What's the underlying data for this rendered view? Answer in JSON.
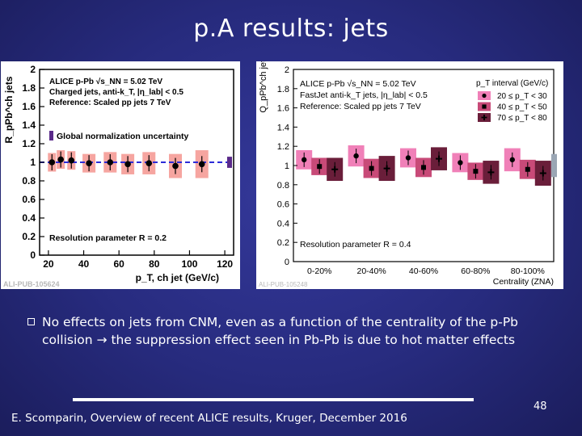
{
  "slide": {
    "title": "p.A results: jets",
    "bullet": "No effects on jets from CNM, even as a function of the centrality of the p-Pb collision → the suppression effect seen in Pb-Pb is due to hot matter effects",
    "footer": "E. Scomparin, Overview of recent ALICE results, Kruger, December 2016",
    "page_number": "48"
  },
  "colors": {
    "background": "#272b7e",
    "band_left": "#f6a5a0",
    "series_20_30": "#f080b8",
    "series_40_50": "#c84a78",
    "series_70_80": "#6a1e3a",
    "dashed_line": "#2c2cd8"
  },
  "chart_data": [
    {
      "type": "scatter",
      "watermark": "ALI-PUB-105624",
      "ylabel": "R_pPb^ch jets",
      "xlabel": "p_T, ch jet (GeV/c)",
      "xlim": [
        15,
        125
      ],
      "ylim": [
        0,
        2
      ],
      "xticks": [
        "20",
        "40",
        "60",
        "80",
        "100",
        "120"
      ],
      "yticks": [
        "0",
        "0.2",
        "0.4",
        "0.6",
        "0.8",
        "1",
        "1.2",
        "1.4",
        "1.6",
        "1.8",
        "2"
      ],
      "legend": [
        "ALICE p-Pb √s_NN = 5.02 TeV",
        "Charged jets, anti-k_T, |η_lab| < 0.5",
        "Reference: Scaled pp jets 7 TeV"
      ],
      "norm_uncertainty_label": "Global normalization uncertainty",
      "resolution_label": "Resolution parameter R = 0.2",
      "x": [
        22,
        27,
        33,
        43,
        55,
        65,
        77,
        92,
        107
      ],
      "y": [
        1.0,
        1.03,
        1.02,
        0.99,
        1.0,
        0.98,
        0.99,
        0.96,
        0.98
      ],
      "syst_low": [
        0.9,
        0.93,
        0.92,
        0.89,
        0.89,
        0.87,
        0.87,
        0.83,
        0.83
      ],
      "syst_high": [
        1.1,
        1.13,
        1.12,
        1.09,
        1.11,
        1.09,
        1.11,
        1.09,
        1.13
      ]
    },
    {
      "type": "scatter",
      "watermark": "ALI-PUB-105248",
      "ylabel": "Q_pPb^ch jets",
      "xlabel": "Centrality (ZNA)",
      "ylim": [
        0,
        2
      ],
      "yticks": [
        "0",
        "0.2",
        "0.4",
        "0.6",
        "0.8",
        "1",
        "1.2",
        "1.4",
        "1.6",
        "1.8",
        "2"
      ],
      "categories": [
        "0-20%",
        "20-40%",
        "40-60%",
        "60-80%",
        "80-100%"
      ],
      "legend": [
        "ALICE p-Pb √s_NN = 5.02 TeV",
        "FastJet anti-k_T jets, |η_lab| < 0.5",
        "Reference: Scaled pp jets 7 TeV"
      ],
      "legend_title": "p_T interval (GeV/c)",
      "resolution_label": "Resolution parameter R = 0.4",
      "series": [
        {
          "name": "20 ≤ p_T < 30",
          "values": [
            1.06,
            1.1,
            1.08,
            1.03,
            1.06
          ],
          "syst": [
            0.1,
            0.11,
            0.1,
            0.1,
            0.12
          ]
        },
        {
          "name": "40 ≤ p_T < 50",
          "values": [
            0.99,
            0.97,
            0.98,
            0.94,
            0.96
          ],
          "syst": [
            0.09,
            0.1,
            0.1,
            0.09,
            0.1
          ]
        },
        {
          "name": "70 ≤ p_T < 80",
          "values": [
            0.96,
            0.97,
            1.07,
            0.93,
            0.92
          ],
          "syst": [
            0.12,
            0.13,
            0.12,
            0.12,
            0.13
          ]
        }
      ]
    }
  ]
}
